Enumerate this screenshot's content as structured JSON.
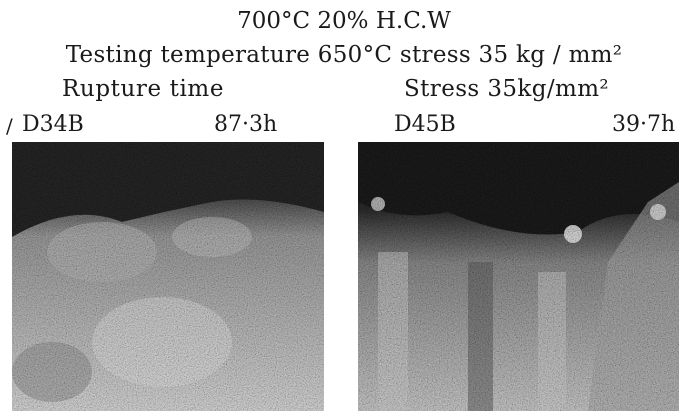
{
  "header": {
    "line1": "700°C 20% H.C.W",
    "line2": "Testing temperature 650°C stress 35 kg / mm²",
    "left_caption": "Rupture time",
    "right_caption": "Stress 35kg/mm²"
  },
  "margin_mark": "/",
  "specimens": [
    {
      "id": "D34B",
      "time": "87·3h"
    },
    {
      "id": "D45B",
      "time": "39·7h"
    }
  ]
}
